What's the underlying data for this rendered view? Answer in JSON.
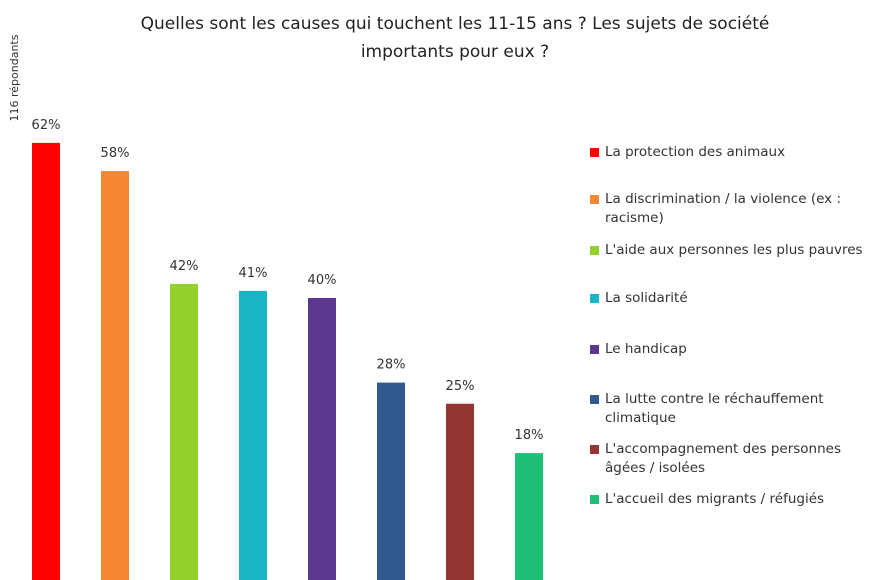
{
  "chart_data": {
    "type": "bar",
    "title": "Quelles sont les causes qui touchent les 11-15 ans ? Les sujets de société importants pour eux ?",
    "annotation": "116 répondants",
    "legend": "right",
    "series": [
      {
        "name": "La protection des animaux",
        "color": "#ff0000",
        "values": [
          62
        ],
        "value_labels": [
          "62%"
        ]
      },
      {
        "name": "La discrimination / la violence (ex : racisme)",
        "color": "#f58634",
        "values": [
          58
        ],
        "value_labels": [
          "58%"
        ]
      },
      {
        "name": "L'aide aux personnes les plus pauvres",
        "color": "#92d12b",
        "values": [
          42
        ],
        "value_labels": [
          "42%"
        ]
      },
      {
        "name": "La solidarité",
        "color": "#1bb4c5",
        "values": [
          41
        ],
        "value_labels": [
          "41%"
        ]
      },
      {
        "name": "Le handicap",
        "color": "#5c378f",
        "values": [
          40
        ],
        "value_labels": [
          "40%"
        ]
      },
      {
        "name": "La lutte contre le réchauffement climatique",
        "color": "#30598f",
        "values": [
          28
        ],
        "value_labels": [
          "28%"
        ]
      },
      {
        "name": "L'accompagnement des personnes âgées / isolées",
        "color": "#943634",
        "values": [
          25
        ],
        "value_labels": [
          "25%"
        ]
      },
      {
        "name": "L'accueil des migrants / réfugiés",
        "color": "#1fbf77",
        "values": [
          18
        ],
        "value_labels": [
          "18%"
        ]
      }
    ]
  }
}
